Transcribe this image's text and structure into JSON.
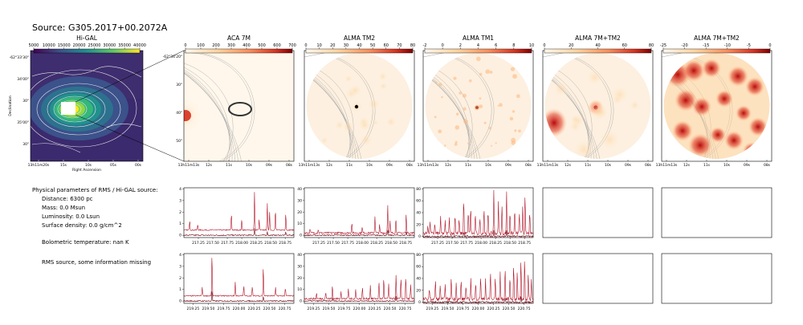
{
  "figure": {
    "title": "Source: G305.2017+00.2072A",
    "params": {
      "heading": "Physical parameters of RMS / Hi-GAL source:",
      "distance": "Distance: 6300 pc",
      "mass": "Mass: 0.0 Msun",
      "luminosity": "Luminosity: 0.0 Lsun",
      "surface_density": "Surface density: 0.0 g/cm^2",
      "bolometric": "Bolometric temperature: nan K",
      "note": "RMS source, some information missing"
    }
  },
  "chart_data": [
    {
      "type": "heatmap",
      "panel": "hi-gal",
      "title": "Hi-GAL",
      "colormap": "viridis",
      "colorbar_ticks": [
        "5000",
        "10000",
        "15000",
        "20000",
        "25000",
        "30000",
        "35000",
        "40000"
      ],
      "xlabel": "Right Ascension",
      "ylabel": "Declination",
      "x_ticks": [
        "13h11m20s",
        "15s",
        "10s",
        "05s",
        "00s"
      ],
      "y_ticks": [
        "-62°33'30\"",
        "34'00\"",
        "30\"",
        "35'00\"",
        "30\""
      ]
    },
    {
      "type": "heatmap",
      "panel": "aca-7m",
      "title": "ACA 7M",
      "colormap": "OrRd",
      "colorbar_ticks": [
        "0",
        "100",
        "200",
        "300",
        "400",
        "500",
        "600",
        "700"
      ],
      "x_ticks": [
        "13h11m13s",
        "12s",
        "11s",
        "10s",
        "09s",
        "08s"
      ],
      "y_ticks": [
        "-62°34'20\"",
        "30\"",
        "40\"",
        "50\""
      ]
    },
    {
      "type": "heatmap",
      "panel": "alma-tm2",
      "title": "ALMA TM2",
      "colormap": "OrRd",
      "colorbar_ticks": [
        "0",
        "10",
        "20",
        "30",
        "40",
        "50",
        "60",
        "70",
        "80"
      ],
      "x_ticks": [
        "13h11m13s",
        "12s",
        "11s",
        "10s",
        "09s",
        "08s"
      ]
    },
    {
      "type": "heatmap",
      "panel": "alma-tm1",
      "title": "ALMA TM1",
      "colormap": "OrRd",
      "colorbar_ticks": [
        "-2",
        "0",
        "2",
        "4",
        "6",
        "8",
        "10"
      ],
      "x_ticks": [
        "13h11m13s",
        "12s",
        "11s",
        "10s",
        "09s",
        "08s"
      ]
    },
    {
      "type": "heatmap",
      "panel": "alma-7m-tm2",
      "title": "ALMA 7M+TM2",
      "colormap": "OrRd",
      "colorbar_ticks": [
        "0",
        "20",
        "40",
        "60",
        "80"
      ],
      "x_ticks": [
        "13h11m13s",
        "12s",
        "11s",
        "10s",
        "09s",
        "08s"
      ]
    },
    {
      "type": "heatmap",
      "panel": "alma-7m-tm2-neg",
      "title": "ALMA 7M+TM2",
      "colormap": "OrRd",
      "colorbar_ticks": [
        "-25",
        "-20",
        "-15",
        "-10",
        "-5",
        "0"
      ],
      "x_ticks": [
        "13h11m13s",
        "12s",
        "11s",
        "10s",
        "09s",
        "08s"
      ]
    },
    {
      "type": "line",
      "panel": "spec-aca-1",
      "xlim": [
        217.0,
        218.9
      ],
      "ylim": [
        -0.2,
        4.1
      ],
      "x_ticks": [
        217.25,
        217.5,
        217.75,
        218.0,
        218.25,
        218.5,
        218.75
      ],
      "y_ticks": [
        0,
        1,
        2,
        3,
        4
      ],
      "series": [
        {
          "baseline": 0.45,
          "noise": 0.05,
          "peaks": [
            [
              217.1,
              0.9
            ],
            [
              217.24,
              0.5
            ],
            [
              217.82,
              1.5
            ],
            [
              218.0,
              0.9
            ],
            [
              218.22,
              3.3
            ],
            [
              218.3,
              0.9
            ],
            [
              218.44,
              2.3
            ],
            [
              218.48,
              1.6
            ],
            [
              218.58,
              1.8
            ],
            [
              218.76,
              1.5
            ]
          ]
        },
        {
          "baseline": 0.0,
          "noise": 0.05,
          "peaks": [
            [
              218.22,
              0.6
            ],
            [
              218.44,
              0.3
            ],
            [
              218.76,
              0.3
            ]
          ]
        }
      ]
    },
    {
      "type": "line",
      "panel": "spec-tm2-1",
      "xlim": [
        217.0,
        218.9
      ],
      "ylim": [
        -2,
        41
      ],
      "x_ticks": [
        217.25,
        217.5,
        217.75,
        218.0,
        218.25,
        218.5,
        218.75
      ],
      "y_ticks": [
        0,
        10,
        20,
        30,
        40
      ],
      "series": [
        {
          "baseline": 2.0,
          "noise": 0.8,
          "peaks": [
            [
              217.1,
              4
            ],
            [
              217.24,
              3
            ],
            [
              217.82,
              10
            ],
            [
              218.0,
              5
            ],
            [
              218.22,
              15
            ],
            [
              218.3,
              7
            ],
            [
              218.44,
              25
            ],
            [
              218.48,
              10
            ],
            [
              218.58,
              13
            ],
            [
              218.76,
              17
            ]
          ]
        },
        {
          "baseline": 0.0,
          "noise": 0.5,
          "peaks": [
            [
              218.44,
              4
            ],
            [
              218.76,
              3
            ]
          ]
        }
      ]
    },
    {
      "type": "line",
      "panel": "spec-tm1-1",
      "xlim": [
        217.0,
        218.9
      ],
      "ylim": [
        -2,
        82
      ],
      "x_ticks": [
        217.25,
        217.5,
        217.75,
        218.0,
        218.25,
        218.5,
        218.75
      ],
      "y_ticks": [
        0,
        20,
        40,
        60,
        80
      ],
      "series": [
        {
          "baseline": 5.0,
          "noise": 3.0,
          "peaks": [
            [
              217.08,
              15
            ],
            [
              217.12,
              22
            ],
            [
              217.2,
              18
            ],
            [
              217.3,
              28
            ],
            [
              217.38,
              20
            ],
            [
              217.45,
              30
            ],
            [
              217.55,
              35
            ],
            [
              217.62,
              25
            ],
            [
              217.7,
              62
            ],
            [
              217.78,
              40
            ],
            [
              217.82,
              48
            ],
            [
              217.9,
              35
            ],
            [
              217.98,
              28
            ],
            [
              218.05,
              45
            ],
            [
              218.12,
              38
            ],
            [
              218.22,
              76
            ],
            [
              218.3,
              55
            ],
            [
              218.36,
              48
            ],
            [
              218.44,
              72
            ],
            [
              218.5,
              40
            ],
            [
              218.58,
              45
            ],
            [
              218.66,
              38
            ],
            [
              218.72,
              50
            ],
            [
              218.76,
              65
            ],
            [
              218.84,
              35
            ]
          ]
        },
        {
          "baseline": 0.0,
          "noise": 1.5,
          "peaks": [
            [
              217.7,
              8
            ],
            [
              218.22,
              10
            ],
            [
              218.44,
              9
            ]
          ]
        }
      ]
    },
    {
      "type": "line",
      "panel": "spec-aca-2",
      "xlim": [
        219.1,
        220.9
      ],
      "ylim": [
        -0.2,
        4.1
      ],
      "x_ticks": [
        219.25,
        219.5,
        219.75,
        220.0,
        220.25,
        220.5,
        220.75
      ],
      "y_ticks": [
        0,
        1,
        2,
        3,
        4
      ],
      "series": [
        {
          "baseline": 0.45,
          "noise": 0.05,
          "peaks": [
            [
              219.56,
              3.8
            ],
            [
              219.4,
              0.8
            ],
            [
              219.94,
              1.2
            ],
            [
              220.08,
              0.9
            ],
            [
              220.22,
              0.8
            ],
            [
              220.4,
              2.6
            ],
            [
              220.6,
              0.7
            ],
            [
              220.76,
              0.7
            ]
          ]
        },
        {
          "baseline": 0.0,
          "noise": 0.05,
          "peaks": [
            [
              219.56,
              0.9
            ],
            [
              220.4,
              0.4
            ]
          ]
        }
      ]
    },
    {
      "type": "line",
      "panel": "spec-tm2-2",
      "xlim": [
        219.1,
        220.9
      ],
      "ylim": [
        -2,
        41
      ],
      "x_ticks": [
        219.25,
        219.5,
        219.75,
        220.0,
        220.25,
        220.5,
        220.75
      ],
      "y_ticks": [
        0,
        10,
        20,
        30,
        40
      ],
      "series": [
        {
          "baseline": 2.0,
          "noise": 0.8,
          "peaks": [
            [
              219.3,
              5
            ],
            [
              219.45,
              6
            ],
            [
              219.56,
              12
            ],
            [
              219.7,
              7
            ],
            [
              219.82,
              9
            ],
            [
              219.94,
              8
            ],
            [
              220.05,
              10
            ],
            [
              220.18,
              12
            ],
            [
              220.32,
              15
            ],
            [
              220.4,
              19
            ],
            [
              220.48,
              13
            ],
            [
              220.6,
              21
            ],
            [
              220.68,
              18
            ],
            [
              220.76,
              20
            ],
            [
              220.84,
              12
            ]
          ]
        },
        {
          "baseline": 0.0,
          "noise": 0.5,
          "peaks": [
            [
              219.56,
              3
            ],
            [
              220.6,
              4
            ]
          ]
        }
      ]
    },
    {
      "type": "line",
      "panel": "spec-tm1-2",
      "xlim": [
        219.1,
        220.9
      ],
      "ylim": [
        -2,
        82
      ],
      "x_ticks": [
        219.25,
        219.5,
        219.75,
        220.0,
        220.25,
        220.5,
        220.75
      ],
      "y_ticks": [
        0,
        20,
        40,
        60,
        80
      ],
      "series": [
        {
          "baseline": 5.0,
          "noise": 3.0,
          "peaks": [
            [
              219.2,
              20
            ],
            [
              219.3,
              35
            ],
            [
              219.38,
              25
            ],
            [
              219.46,
              28
            ],
            [
              219.56,
              40
            ],
            [
              219.64,
              30
            ],
            [
              219.72,
              33
            ],
            [
              219.8,
              25
            ],
            [
              219.88,
              38
            ],
            [
              219.96,
              30
            ],
            [
              220.04,
              42
            ],
            [
              220.12,
              35
            ],
            [
              220.2,
              50
            ],
            [
              220.28,
              38
            ],
            [
              220.36,
              45
            ],
            [
              220.44,
              55
            ],
            [
              220.52,
              40
            ],
            [
              220.58,
              62
            ],
            [
              220.64,
              48
            ],
            [
              220.7,
              68
            ],
            [
              220.76,
              72
            ],
            [
              220.82,
              45
            ],
            [
              220.87,
              35
            ]
          ]
        },
        {
          "baseline": 0.0,
          "noise": 1.5,
          "peaks": [
            [
              220.44,
              8
            ],
            [
              220.7,
              10
            ]
          ]
        }
      ]
    },
    {
      "type": "line",
      "panel": "spec-empty-a1",
      "empty": true
    },
    {
      "type": "line",
      "panel": "spec-empty-b1",
      "empty": true
    },
    {
      "type": "line",
      "panel": "spec-empty-a2",
      "empty": true
    },
    {
      "type": "line",
      "panel": "spec-empty-b2",
      "empty": true
    }
  ]
}
